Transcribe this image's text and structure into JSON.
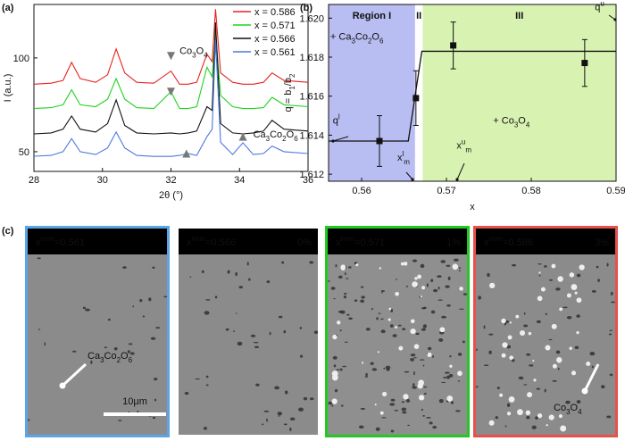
{
  "panel_labels": [
    "(a)",
    "(b)",
    "(c)"
  ],
  "chart_data": [
    {
      "type": "line",
      "x_label": "2θ (°)",
      "y_label": "I (a.u.)",
      "x": [
        28,
        28.5,
        28.85,
        29.1,
        29.35,
        29.8,
        30.15,
        30.4,
        30.65,
        31,
        31.5,
        32,
        32.25,
        32.5,
        32.75,
        33.05,
        33.2,
        33.3,
        33.45,
        33.8,
        34.1,
        34.4,
        34.7,
        34.95,
        35.3,
        36
      ],
      "xlim": [
        28,
        36
      ],
      "xticks": [
        28,
        30,
        32,
        34,
        36
      ],
      "ylim": [
        39.5,
        128.5
      ],
      "yticks": [
        50,
        100
      ],
      "legend": "upper right",
      "series": [
        {
          "name": "x = 0.586",
          "color": "#e8221e",
          "values": [
            86,
            86.5,
            88,
            97.6,
            89,
            87,
            91,
            104.8,
            92,
            87,
            86.5,
            93,
            86,
            86,
            87,
            102,
            98,
            126,
            92,
            87,
            86,
            86,
            87,
            92,
            88,
            87
          ]
        },
        {
          "name": "x = 0.571",
          "color": "#1fd21f",
          "values": [
            73,
            73.5,
            75,
            83,
            75,
            74,
            78,
            89,
            78,
            73.5,
            73,
            82,
            73,
            73,
            74,
            95,
            90,
            113,
            80,
            74,
            73,
            73,
            73.5,
            79,
            75,
            74
          ]
        },
        {
          "name": "x = 0.566",
          "color": "#111111",
          "values": [
            59.5,
            60,
            62,
            69,
            62,
            60.5,
            65,
            77.6,
            64,
            60,
            59.5,
            60,
            59.5,
            60,
            61,
            74,
            72,
            119,
            65,
            60,
            59.5,
            60,
            61,
            66.7,
            62,
            61
          ]
        },
        {
          "name": "x = 0.561",
          "color": "#4a78e0",
          "values": [
            47.6,
            48,
            50,
            57,
            50,
            48.5,
            52,
            60.5,
            52,
            48,
            47.5,
            47.5,
            48,
            49,
            48,
            58,
            62,
            109.5,
            55,
            48.5,
            54.8,
            48.5,
            49,
            53,
            50,
            49
          ]
        }
      ],
      "peak_markers": [
        {
          "x": 32.0,
          "y": 101,
          "dir": "down"
        },
        {
          "x": 32.0,
          "y": 82,
          "dir": "down"
        },
        {
          "x": 32.45,
          "y": 49,
          "dir": "up"
        },
        {
          "x": 34.1,
          "y": 58,
          "dir": "up"
        }
      ],
      "annotations": [
        {
          "text": [
            "Co",
            {
              "sub": "3"
            },
            "O",
            {
              "sub": "4"
            }
          ],
          "x": 32.25,
          "y": 102,
          "color": "#777777"
        },
        {
          "text": [
            "Ca",
            {
              "sub": "3"
            },
            "Co",
            {
              "sub": "2"
            },
            "O",
            {
              "sub": "6"
            }
          ],
          "x": 34.4,
          "y": 57.5,
          "color": "#777777"
        }
      ]
    },
    {
      "type": "scatter",
      "x_label": "x",
      "y_label": [
        "q = b",
        {
          "sub": "1"
        },
        "/b",
        {
          "sub": "2"
        }
      ],
      "xlim": [
        0.5561,
        0.59
      ],
      "xticks": [
        0.56,
        0.57,
        0.58,
        0.59
      ],
      "ylim": [
        1.61164,
        1.6207
      ],
      "yticks": [
        1.612,
        1.614,
        1.616,
        1.618,
        {
          "value": 1.62,
          "label": "1.620"
        }
      ],
      "regions": [
        {
          "label": "Region I",
          "xlim": [
            0.5561,
            0.5663
          ],
          "color": "#b8bdf2"
        },
        {
          "label": "II",
          "xlim": [
            0.5663,
            0.5672
          ],
          "color": "#ffffff"
        },
        {
          "label": "III",
          "xlim": [
            0.5672,
            0.59
          ],
          "color": "#d8f2b2"
        }
      ],
      "series": [
        {
          "x": [
            0.5621,
            0.5664,
            0.5708,
            0.5863
          ],
          "values": [
            1.6137,
            1.6159,
            1.6186,
            1.6177
          ],
          "errors": [
            0.0013,
            0.0014,
            0.0012,
            0.0012
          ],
          "color": "#111111"
        }
      ],
      "fit": {
        "x": [
          0.5561,
          0.5655,
          0.5671,
          0.59
        ],
        "values": [
          1.6137,
          1.6137,
          1.6183,
          1.6183
        ]
      },
      "annotations": [
        {
          "text": [
            "+ Ca",
            {
              "sub": "3"
            },
            "Co",
            {
              "sub": "2"
            },
            "O",
            {
              "sub": "6"
            }
          ],
          "x": 0.5563,
          "y": 1.6189
        },
        {
          "text": [
            "+ Co",
            {
              "sub": "3"
            },
            "O",
            {
              "sub": "4"
            }
          ],
          "x": 0.5755,
          "y": 1.6146
        },
        {
          "text": [
            "q",
            {
              "sup": "l"
            }
          ],
          "x": 0.5566,
          "y": 1.6146
        },
        {
          "text": [
            "q",
            {
              "sup": "u"
            }
          ],
          "x": 0.5875,
          "y": 1.6204
        },
        {
          "text": [
            "x",
            {
              "sup": "l"
            },
            {
              "sub": "m"
            }
          ],
          "x": 0.5642,
          "y": 1.6127
        },
        {
          "text": [
            "x",
            {
              "sup": "u"
            },
            {
              "sub": "m"
            }
          ],
          "x": 0.5712,
          "y": 1.6133
        }
      ]
    }
  ],
  "micrographs": [
    {
      "label": [
        "x",
        {
          "sup": "nom"
        },
        "=0.561"
      ],
      "color": "#5aa5e6",
      "phase": [
        "Ca",
        {
          "sub": "3"
        },
        "Co",
        {
          "sub": "2"
        },
        "O",
        {
          "sub": "6"
        }
      ],
      "scale_bar": "10μm"
    },
    {
      "label": [
        "x",
        {
          "sup": "nom"
        },
        "=0.566"
      ],
      "color": "#ffffff",
      "fraction": "0%"
    },
    {
      "label": [
        "x",
        {
          "sup": "nom"
        },
        "=0.571"
      ],
      "color": "#22c922",
      "fraction": "1%"
    },
    {
      "label": [
        "x",
        {
          "sup": "nom"
        },
        "=0.586"
      ],
      "color": "#e8504a",
      "fraction": "3%",
      "phase": [
        "Co",
        {
          "sub": "3"
        },
        "O",
        {
          "sub": "4"
        }
      ]
    }
  ]
}
